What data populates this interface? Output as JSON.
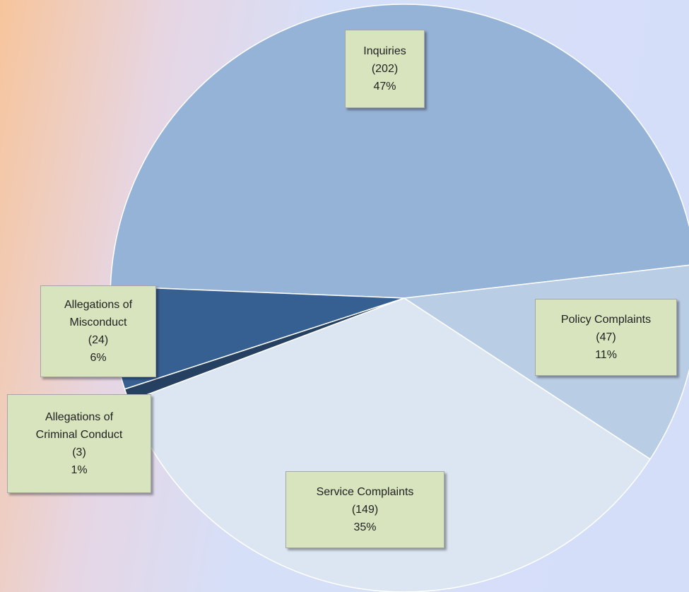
{
  "chart_data": {
    "type": "pie",
    "categories": [
      "Inquiries",
      "Policy Complaints",
      "Service Complaints",
      "Allegations of Criminal Conduct",
      "Allegations of Misconduct"
    ],
    "values": [
      202,
      47,
      149,
      3,
      24
    ],
    "value_labels": [
      "(202)",
      "(47)",
      "(149)",
      "(3)",
      "(24)"
    ],
    "percent_labels": [
      "47%",
      "11%",
      "35%",
      "1%",
      "6%"
    ],
    "colors": [
      "#95b3d7",
      "#b9cde5",
      "#dce6f2",
      "#254061",
      "#376092"
    ]
  }
}
